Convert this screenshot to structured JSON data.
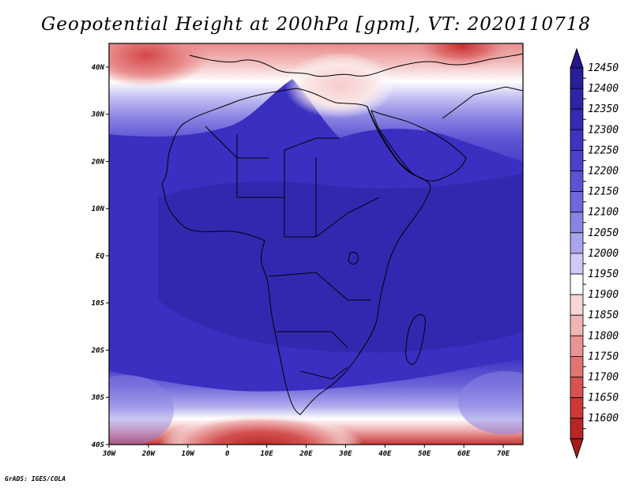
{
  "title": "Geopotential Height at 200hPa [gpm], VT: 2020110718",
  "credit": "GrADS: IGES/COLA",
  "map": {
    "lon_range": [
      -30,
      75
    ],
    "lat_range": [
      -40,
      45
    ],
    "lat_ticks": [
      {
        "value": 40,
        "label": "40N"
      },
      {
        "value": 30,
        "label": "30N"
      },
      {
        "value": 20,
        "label": "20N"
      },
      {
        "value": 10,
        "label": "10N"
      },
      {
        "value": 0,
        "label": "EQ"
      },
      {
        "value": -10,
        "label": "10S"
      },
      {
        "value": -20,
        "label": "20S"
      },
      {
        "value": -30,
        "label": "30S"
      },
      {
        "value": -40,
        "label": "40S"
      }
    ],
    "lon_ticks": [
      {
        "value": -30,
        "label": "30W"
      },
      {
        "value": -20,
        "label": "20W"
      },
      {
        "value": -10,
        "label": "10W"
      },
      {
        "value": 0,
        "label": "0"
      },
      {
        "value": 10,
        "label": "10E"
      },
      {
        "value": 20,
        "label": "20E"
      },
      {
        "value": 30,
        "label": "30E"
      },
      {
        "value": 40,
        "label": "40E"
      },
      {
        "value": 50,
        "label": "50E"
      },
      {
        "value": 60,
        "label": "60E"
      },
      {
        "value": 70,
        "label": "70E"
      }
    ]
  },
  "colorbar": {
    "levels": [
      {
        "label": "12450",
        "color": "#2a1d99"
      },
      {
        "label": "12400",
        "color": "#2f23a6"
      },
      {
        "label": "12350",
        "color": "#3629b4"
      },
      {
        "label": "12300",
        "color": "#3f33c0"
      },
      {
        "label": "12250",
        "color": "#4b41ca"
      },
      {
        "label": "12200",
        "color": "#5c53d3"
      },
      {
        "label": "12150",
        "color": "#7068db"
      },
      {
        "label": "12100",
        "color": "#8a83e3"
      },
      {
        "label": "12050",
        "color": "#a9a4ec"
      },
      {
        "label": "12000",
        "color": "#cdcaf5"
      },
      {
        "label": "11950",
        "color": "#ffffff"
      },
      {
        "label": "11900",
        "color": "#f8d6d6"
      },
      {
        "label": "11850",
        "color": "#f0b5b5"
      },
      {
        "label": "11800",
        "color": "#e89494"
      },
      {
        "label": "11750",
        "color": "#e07373"
      },
      {
        "label": "11700",
        "color": "#d85252"
      },
      {
        "label": "11650",
        "color": "#cc3838"
      },
      {
        "label": "11600",
        "color": "#b82626"
      }
    ],
    "top_arrow_color": "#24168c",
    "bottom_arrow_color": "#a61c1c"
  },
  "field_colors": {
    "deep": "#3a2fc0",
    "deeper": "#2f25ab",
    "mid": "#4b41ca",
    "light": "#8a83e3",
    "pale": "#cdcaf5",
    "white": "#ffffff",
    "pink": "#f0b5b5",
    "red": "#d85252",
    "darkred": "#c03030",
    "coast": "#000000"
  }
}
